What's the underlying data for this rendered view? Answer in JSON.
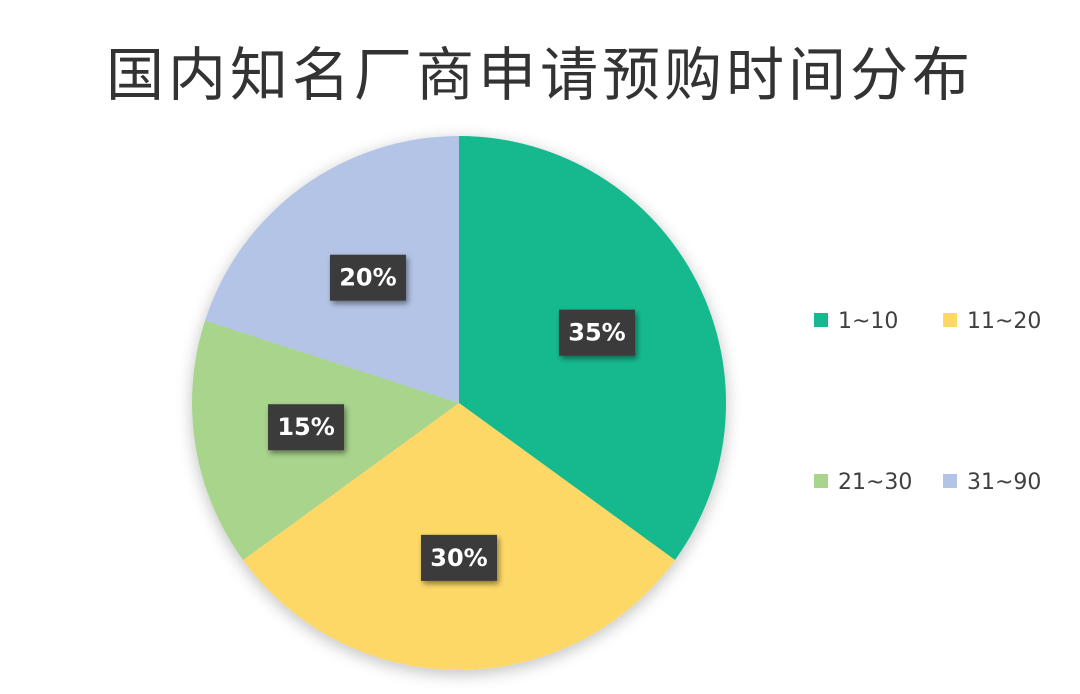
{
  "chart_data": {
    "type": "pie",
    "title": "国内知名厂商申请预购时间分布",
    "categories": [
      "1~10",
      "11~20",
      "21~30",
      "31~90"
    ],
    "values": [
      35,
      30,
      15,
      20
    ],
    "labels": [
      "35%",
      "30%",
      "15%",
      "20%"
    ],
    "colors": [
      "#14b98e",
      "#fdd866",
      "#a8d48c",
      "#b3c4e6"
    ],
    "start_angle_deg": 0,
    "direction": "clockwise",
    "legend": {
      "placement": "right",
      "entries": [
        "1~10",
        "11~20",
        "21~30",
        "31~90"
      ]
    }
  }
}
